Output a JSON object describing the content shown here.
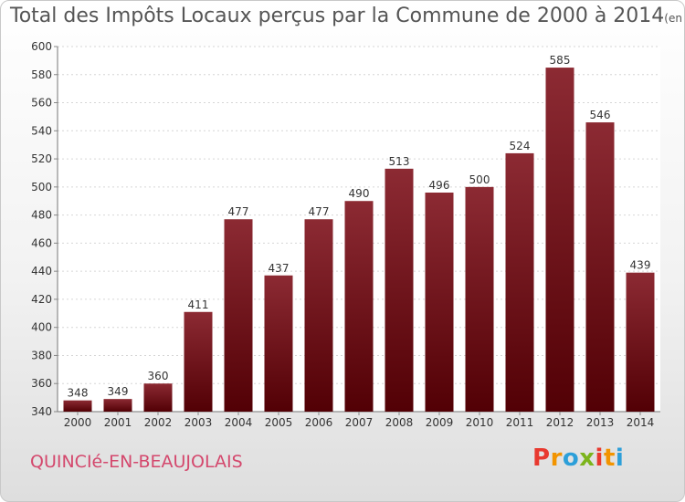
{
  "chart_data": {
    "type": "bar",
    "title": "Total des Impôts Locaux perçus par la Commune de 2000 à 2014",
    "unit": "(en milliers d'€)",
    "categories": [
      "2000",
      "2001",
      "2002",
      "2003",
      "2004",
      "2005",
      "2006",
      "2007",
      "2008",
      "2009",
      "2010",
      "2011",
      "2012",
      "2013",
      "2014"
    ],
    "values": [
      348,
      349,
      360,
      411,
      477,
      437,
      477,
      490,
      513,
      496,
      500,
      524,
      585,
      546,
      439
    ],
    "ylim": [
      340,
      600
    ],
    "yticks": [
      340,
      360,
      380,
      400,
      420,
      440,
      460,
      480,
      500,
      520,
      540,
      560,
      580,
      600
    ],
    "grid": true,
    "colors": {
      "bar_top": "#8c2a33",
      "bar_bottom": "#520005",
      "title": "#555555",
      "commune": "#d4486d"
    }
  },
  "commune": "QUINCIé-EN-BEAUJOLAIS",
  "logo": {
    "text": "Proxiti",
    "colors": [
      "#e8392f",
      "#f29400",
      "#2c9fd9",
      "#7cb41c",
      "#e8392f",
      "#f29400",
      "#2c9fd9"
    ]
  }
}
